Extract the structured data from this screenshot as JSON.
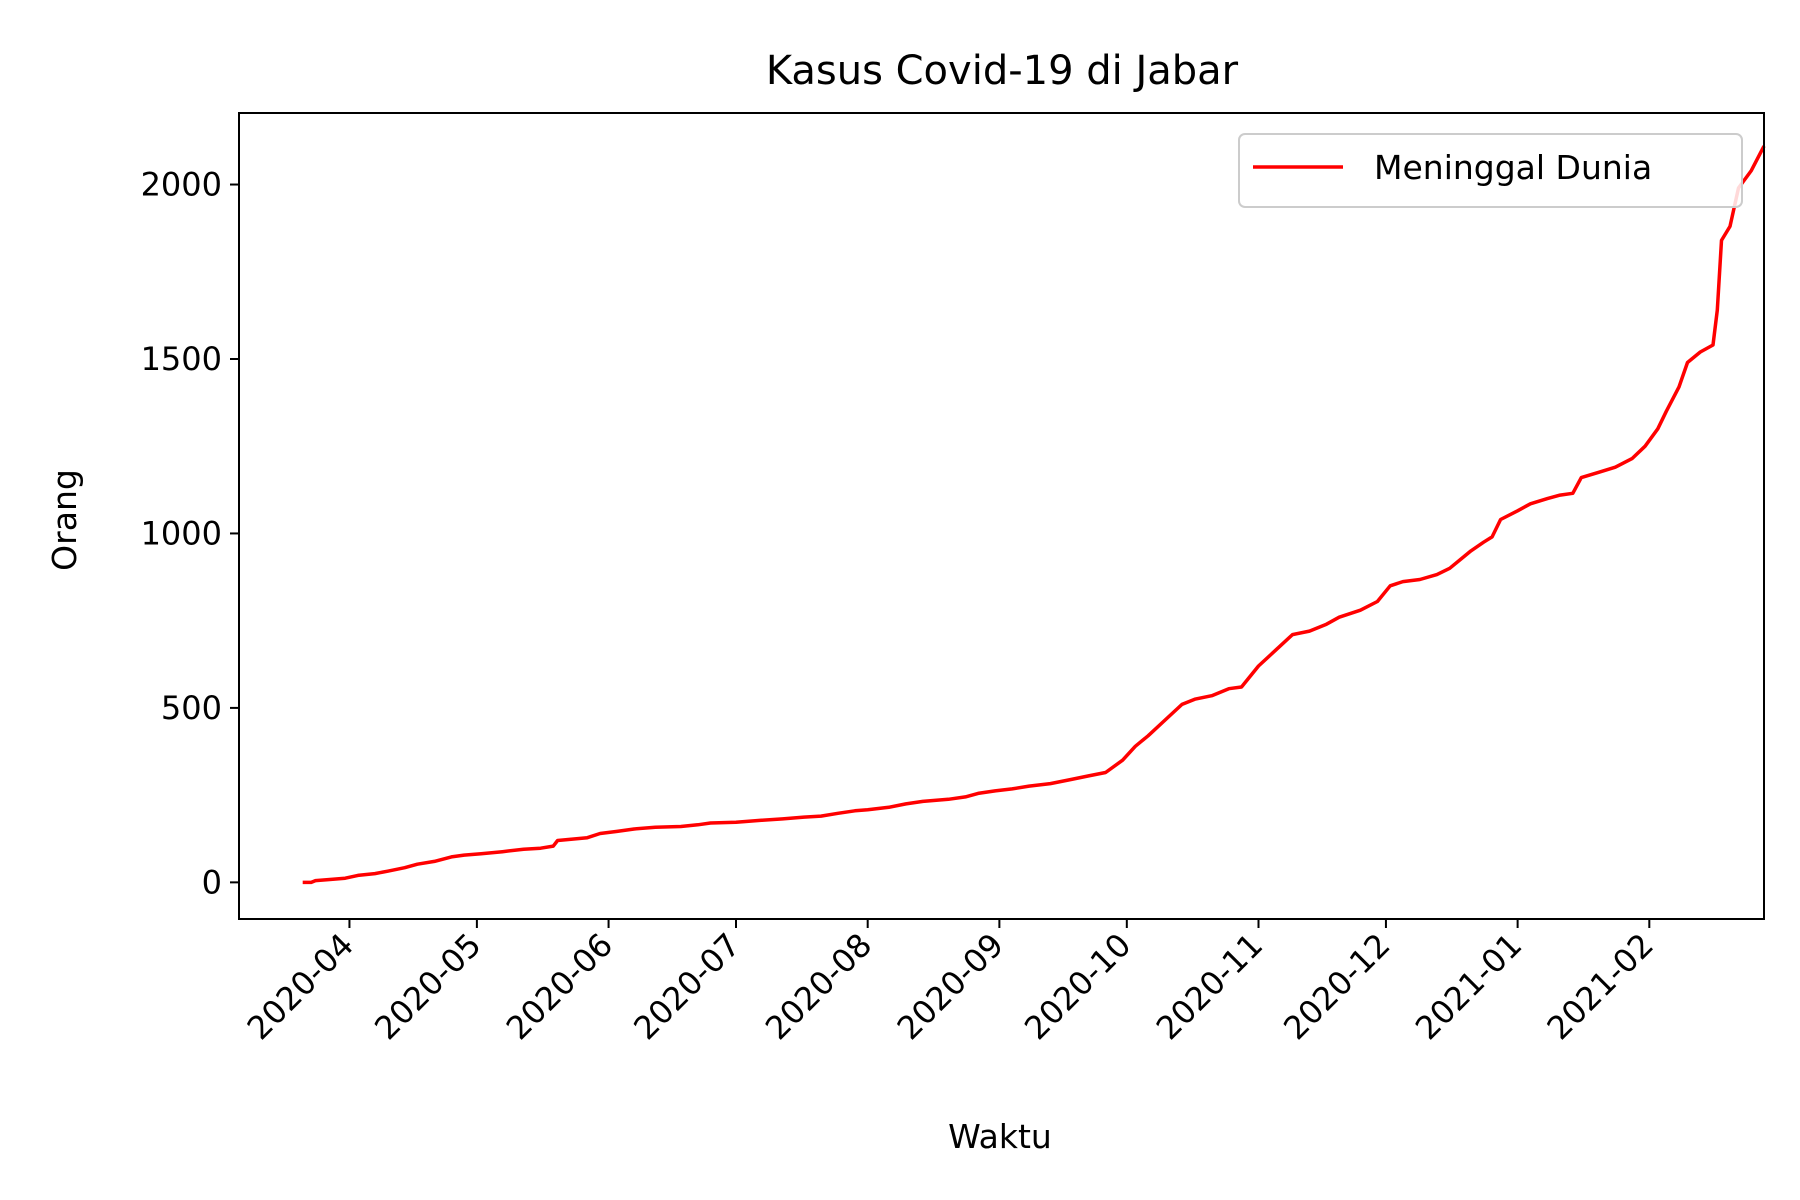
{
  "chart_data": {
    "type": "line",
    "title": "Kasus Covid-19 di Jabar",
    "xlabel": "Waktu",
    "ylabel": "Orang",
    "x_ticks": [
      "2020-04",
      "2020-05",
      "2020-06",
      "2020-07",
      "2020-08",
      "2020-09",
      "2020-10",
      "2020-11",
      "2020-12",
      "2021-01",
      "2021-02"
    ],
    "y_ticks": [
      "0",
      "500",
      "1000",
      "1500",
      "2000"
    ],
    "xlim": [
      "2020-03-06",
      "2021-02-28"
    ],
    "ylim": [
      -105,
      2205
    ],
    "grid": false,
    "legend_position": "top-right",
    "series": [
      {
        "name": "Meninggal Dunia",
        "color": "#ff0000",
        "points": [
          [
            "2020-03-21",
            0
          ],
          [
            "2020-03-23",
            0
          ],
          [
            "2020-03-24",
            5
          ],
          [
            "2020-03-27",
            8
          ],
          [
            "2020-03-31",
            12
          ],
          [
            "2020-04-03",
            20
          ],
          [
            "2020-04-07",
            25
          ],
          [
            "2020-04-10",
            32
          ],
          [
            "2020-04-14",
            42
          ],
          [
            "2020-04-17",
            52
          ],
          [
            "2020-04-21",
            60
          ],
          [
            "2020-04-25",
            73
          ],
          [
            "2020-04-28",
            78
          ],
          [
            "2020-05-02",
            82
          ],
          [
            "2020-05-07",
            88
          ],
          [
            "2020-05-12",
            95
          ],
          [
            "2020-05-16",
            98
          ],
          [
            "2020-05-19",
            104
          ],
          [
            "2020-05-20",
            120
          ],
          [
            "2020-05-27",
            128
          ],
          [
            "2020-05-30",
            140
          ],
          [
            "2020-06-03",
            146
          ],
          [
            "2020-06-07",
            153
          ],
          [
            "2020-06-12",
            158
          ],
          [
            "2020-06-18",
            160
          ],
          [
            "2020-06-22",
            165
          ],
          [
            "2020-06-25",
            170
          ],
          [
            "2020-07-01",
            172
          ],
          [
            "2020-07-07",
            178
          ],
          [
            "2020-07-12",
            182
          ],
          [
            "2020-07-17",
            187
          ],
          [
            "2020-07-21",
            190
          ],
          [
            "2020-07-25",
            198
          ],
          [
            "2020-07-29",
            205
          ],
          [
            "2020-08-01",
            208
          ],
          [
            "2020-08-06",
            215
          ],
          [
            "2020-08-10",
            225
          ],
          [
            "2020-08-14",
            232
          ],
          [
            "2020-08-20",
            238
          ],
          [
            "2020-08-24",
            245
          ],
          [
            "2020-08-27",
            255
          ],
          [
            "2020-08-31",
            262
          ],
          [
            "2020-09-04",
            268
          ],
          [
            "2020-09-08",
            276
          ],
          [
            "2020-09-13",
            283
          ],
          [
            "2020-09-18",
            295
          ],
          [
            "2020-09-22",
            305
          ],
          [
            "2020-09-26",
            315
          ],
          [
            "2020-09-30",
            350
          ],
          [
            "2020-10-03",
            390
          ],
          [
            "2020-10-06",
            420
          ],
          [
            "2020-10-10",
            465
          ],
          [
            "2020-10-14",
            510
          ],
          [
            "2020-10-17",
            525
          ],
          [
            "2020-10-21",
            535
          ],
          [
            "2020-10-25",
            555
          ],
          [
            "2020-10-28",
            560
          ],
          [
            "2020-11-01",
            620
          ],
          [
            "2020-11-05",
            665
          ],
          [
            "2020-11-09",
            710
          ],
          [
            "2020-11-13",
            720
          ],
          [
            "2020-11-17",
            740
          ],
          [
            "2020-11-20",
            760
          ],
          [
            "2020-11-25",
            780
          ],
          [
            "2020-11-29",
            805
          ],
          [
            "2020-12-02",
            850
          ],
          [
            "2020-12-05",
            862
          ],
          [
            "2020-12-09",
            868
          ],
          [
            "2020-12-13",
            882
          ],
          [
            "2020-12-16",
            900
          ],
          [
            "2020-12-19",
            930
          ],
          [
            "2020-12-21",
            950
          ],
          [
            "2020-12-24",
            975
          ],
          [
            "2020-12-26",
            990
          ],
          [
            "2020-12-28",
            1040
          ],
          [
            "2021-01-01",
            1065
          ],
          [
            "2021-01-04",
            1085
          ],
          [
            "2021-01-08",
            1100
          ],
          [
            "2021-01-11",
            1110
          ],
          [
            "2021-01-14",
            1115
          ],
          [
            "2021-01-16",
            1160
          ],
          [
            "2021-01-20",
            1175
          ],
          [
            "2021-01-24",
            1190
          ],
          [
            "2021-01-28",
            1215
          ],
          [
            "2021-01-31",
            1250
          ],
          [
            "2021-02-03",
            1300
          ],
          [
            "2021-02-05",
            1350
          ],
          [
            "2021-02-08",
            1420
          ],
          [
            "2021-02-10",
            1490
          ],
          [
            "2021-02-13",
            1520
          ],
          [
            "2021-02-16",
            1540
          ],
          [
            "2021-02-17",
            1640
          ],
          [
            "2021-02-18",
            1840
          ],
          [
            "2021-02-20",
            1880
          ],
          [
            "2021-02-22",
            1990
          ],
          [
            "2021-02-25",
            2040
          ],
          [
            "2021-02-28",
            2110
          ]
        ]
      }
    ]
  }
}
